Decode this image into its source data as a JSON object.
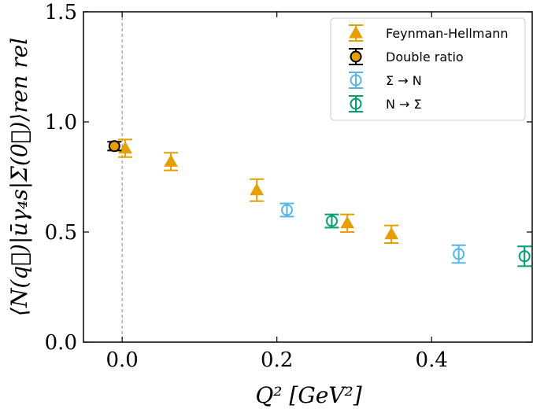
{
  "chart_data": {
    "type": "scatter",
    "xlabel": "Q² [GeV²]",
    "ylabel": "⟨N(q⃗)|ūγ₄s|Σ(0⃗)⟩ren rel",
    "xlim": [
      -0.05,
      0.53
    ],
    "ylim": [
      0.0,
      1.5
    ],
    "x_ticks": [
      0.0,
      0.2,
      0.4
    ],
    "x_tick_labels": [
      "0.0",
      "0.2",
      "0.4"
    ],
    "y_ticks": [
      0.0,
      0.5,
      1.0,
      1.5
    ],
    "y_tick_labels": [
      "0.0",
      "0.5",
      "1.0",
      "1.5"
    ],
    "reference_line_x": 0.0,
    "legend_position": "top-right",
    "series": [
      {
        "name": "Feynman-Hellmann",
        "marker": "triangle",
        "color": "#E69F00",
        "points": [
          {
            "x": 0.004,
            "y": 0.88,
            "err": 0.04
          },
          {
            "x": 0.063,
            "y": 0.82,
            "err": 0.04
          },
          {
            "x": 0.174,
            "y": 0.69,
            "err": 0.05
          },
          {
            "x": 0.291,
            "y": 0.54,
            "err": 0.04
          },
          {
            "x": 0.348,
            "y": 0.49,
            "err": 0.04
          }
        ]
      },
      {
        "name": "Double ratio",
        "marker": "circle-open",
        "color": "#000000",
        "points": [
          {
            "x": -0.01,
            "y": 0.89,
            "err": 0.02
          }
        ]
      },
      {
        "name": "Σ → N",
        "marker": "circle-open",
        "color": "#56B4E9",
        "points": [
          {
            "x": 0.213,
            "y": 0.6,
            "err": 0.03
          },
          {
            "x": 0.435,
            "y": 0.4,
            "err": 0.04
          }
        ]
      },
      {
        "name": "N → Σ",
        "marker": "circle-open",
        "color": "#009E73",
        "points": [
          {
            "x": 0.271,
            "y": 0.55,
            "err": 0.03
          },
          {
            "x": 0.52,
            "y": 0.39,
            "err": 0.045
          }
        ]
      }
    ]
  }
}
